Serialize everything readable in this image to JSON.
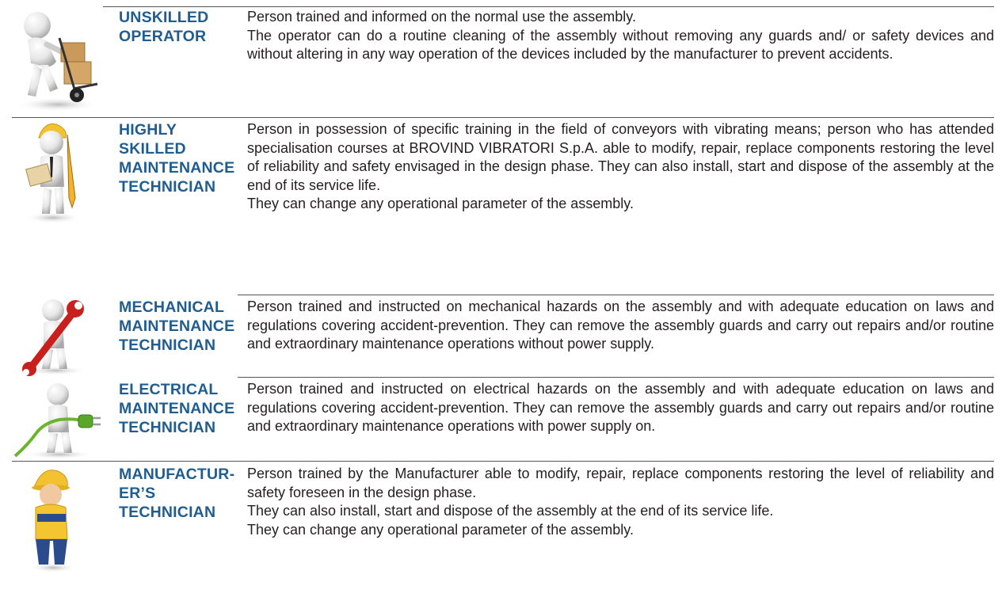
{
  "rows": [
    {
      "title": [
        "UNSKILLED",
        "OPERATOR"
      ],
      "paragraphs": [
        "Person trained and informed on the normal use the assembly.",
        "The operator can do a routine cleaning of the assembly without removing any guards and/ or safety devices and without altering in any way operation of the devices included by the manufacturer to prevent accidents."
      ]
    },
    {
      "title": [
        "HIGHLY",
        "SKILLED",
        "MAINTENANCE",
        "TECHNICIAN"
      ],
      "paragraphs": [
        "Person in possession of specific training in the field of conveyors with vibrating means; person who has attended specialisation courses at BROVIND VIBRATORI S.p.A. able to modify, repair, replace components restoring the level of reliability and safety envisaged in the design phase. They can also install, start and dispose of the assembly at the end of its service life.",
        "They can change any operational parameter of the assembly."
      ]
    },
    {
      "title": [
        "MECHANICAL",
        "MAINTENANCE",
        "TECHNICIAN"
      ],
      "paragraphs": [
        "Person trained and instructed on mechanical hazards on the assembly and with adequate education on laws and regulations covering accident-prevention. They can remove the assembly guards and carry out repairs and/or routine and extraordinary maintenance operations without power supply."
      ]
    },
    {
      "title": [
        "ELECTRICAL",
        "MAINTENANCE",
        "TECHNICIAN"
      ],
      "paragraphs": [
        "Person trained and instructed on electrical hazards on the assembly and with adequate education on laws and regulations covering accident-prevention. They can remove the assembly guards and carry out repairs and/or routine and extraordinary maintenance operations with power supply on."
      ]
    },
    {
      "title": [
        "MANUFACTUR-",
        "ER’S",
        "TECHNICIAN"
      ],
      "paragraphs": [
        "Person trained by the Manufacturer able to modify, repair, replace components restoring the level of reliability and safety foreseen in the design phase.",
        "They can also install, start and dispose of the assembly at the end of its service life.",
        "They can change any operational parameter of the assembly."
      ]
    }
  ]
}
